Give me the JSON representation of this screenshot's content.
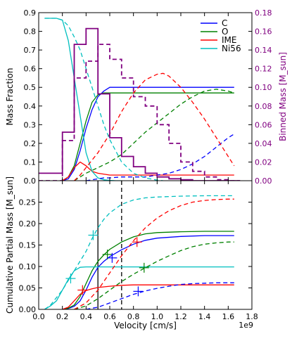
{
  "chart_data": [
    {
      "type": "line",
      "panel": "top",
      "xlim": [
        0,
        1.8
      ],
      "ylim": [
        0,
        0.9
      ],
      "ylabel": "Mass Fraction",
      "yticks": [
        "0.0",
        "0.1",
        "0.2",
        "0.3",
        "0.4",
        "0.5",
        "0.6",
        "0.7",
        "0.8",
        "0.9"
      ],
      "right_axis": {
        "label": "Binned Mass [M_sun]",
        "ylim": [
          0,
          0.18
        ],
        "yticks": [
          "0.00",
          "0.02",
          "0.04",
          "0.06",
          "0.08",
          "0.10",
          "0.12",
          "0.14",
          "0.16",
          "0.18"
        ],
        "color": "#800080"
      },
      "legend": {
        "position": "top-right",
        "entries": [
          {
            "name": "C",
            "color": "#0000ff"
          },
          {
            "name": "O",
            "color": "#008000"
          },
          {
            "name": "IME",
            "color": "#ff0000"
          },
          {
            "name": "Ni56",
            "color": "#00bfbf"
          }
        ]
      },
      "series": [
        {
          "name": "C",
          "color": "#0000ff",
          "style": "solid",
          "x": [
            0.2,
            0.25,
            0.3,
            0.35,
            0.4,
            0.45,
            0.5,
            0.55,
            0.6,
            0.65,
            0.7,
            0.8,
            1.0,
            1.2,
            1.4,
            1.6,
            1.65
          ],
          "y": [
            0,
            0.01,
            0.06,
            0.16,
            0.28,
            0.38,
            0.45,
            0.48,
            0.5,
            0.5,
            0.5,
            0.5,
            0.5,
            0.5,
            0.5,
            0.5,
            0.5
          ]
        },
        {
          "name": "O",
          "color": "#008000",
          "style": "solid",
          "x": [
            0.2,
            0.25,
            0.3,
            0.35,
            0.4,
            0.45,
            0.5,
            0.55,
            0.6,
            0.7,
            0.8,
            1.0,
            1.2,
            1.4,
            1.6,
            1.65
          ],
          "y": [
            0,
            0.02,
            0.08,
            0.2,
            0.32,
            0.42,
            0.46,
            0.47,
            0.47,
            0.47,
            0.47,
            0.47,
            0.47,
            0.47,
            0.47,
            0.47
          ]
        },
        {
          "name": "IME",
          "color": "#ff0000",
          "style": "solid",
          "x": [
            0.2,
            0.25,
            0.3,
            0.35,
            0.4,
            0.45,
            0.5,
            0.6,
            0.7,
            0.8,
            1.0,
            1.2,
            1.4,
            1.6,
            1.65
          ],
          "y": [
            0,
            0.02,
            0.07,
            0.1,
            0.08,
            0.05,
            0.04,
            0.03,
            0.03,
            0.03,
            0.03,
            0.03,
            0.03,
            0.03,
            0.03
          ]
        },
        {
          "name": "Ni56",
          "color": "#00bfbf",
          "style": "solid",
          "x": [
            0.05,
            0.1,
            0.15,
            0.2,
            0.25,
            0.3,
            0.35,
            0.4,
            0.45,
            0.5,
            0.55,
            0.6,
            0.65,
            0.7
          ],
          "y": [
            0.87,
            0.87,
            0.87,
            0.86,
            0.75,
            0.55,
            0.35,
            0.15,
            0.05,
            0.015,
            0.005,
            0.002,
            0.0,
            0.0
          ]
        },
        {
          "name": "C (dashed)",
          "color": "#0000ff",
          "style": "dashed",
          "x": [
            0.4,
            0.45,
            0.5,
            0.55,
            0.6,
            0.7,
            0.8,
            0.9,
            1.0,
            1.1,
            1.2,
            1.3,
            1.4,
            1.5,
            1.6,
            1.65
          ],
          "y": [
            0,
            0.005,
            0.01,
            0.015,
            0.015,
            0.02,
            0.02,
            0.02,
            0.03,
            0.04,
            0.06,
            0.09,
            0.13,
            0.18,
            0.23,
            0.25
          ]
        },
        {
          "name": "O (dashed)",
          "color": "#008000",
          "style": "dashed",
          "x": [
            0.3,
            0.35,
            0.4,
            0.5,
            0.6,
            0.7,
            0.8,
            0.9,
            1.0,
            1.1,
            1.2,
            1.3,
            1.4,
            1.5,
            1.6,
            1.65
          ],
          "y": [
            0,
            0.02,
            0.04,
            0.07,
            0.1,
            0.14,
            0.2,
            0.26,
            0.31,
            0.36,
            0.41,
            0.45,
            0.48,
            0.49,
            0.48,
            0.47
          ]
        },
        {
          "name": "IME (dashed)",
          "color": "#ff0000",
          "style": "dashed",
          "x": [
            0.3,
            0.35,
            0.4,
            0.5,
            0.6,
            0.7,
            0.8,
            0.9,
            1.0,
            1.05,
            1.1,
            1.2,
            1.3,
            1.4,
            1.5,
            1.6,
            1.65
          ],
          "y": [
            0,
            0.03,
            0.07,
            0.15,
            0.25,
            0.37,
            0.47,
            0.54,
            0.57,
            0.575,
            0.56,
            0.5,
            0.42,
            0.33,
            0.23,
            0.13,
            0.08
          ]
        },
        {
          "name": "Ni56 (dashed)",
          "color": "#00bfbf",
          "style": "dashed",
          "x": [
            0.05,
            0.1,
            0.15,
            0.2,
            0.25,
            0.3,
            0.35,
            0.4,
            0.45,
            0.5,
            0.55,
            0.6,
            0.7,
            0.8,
            0.9,
            1.0,
            1.05
          ],
          "y": [
            0.87,
            0.87,
            0.87,
            0.86,
            0.83,
            0.77,
            0.7,
            0.6,
            0.5,
            0.4,
            0.3,
            0.22,
            0.1,
            0.04,
            0.015,
            0.003,
            0.0
          ]
        },
        {
          "name": "Binned mass (solid)",
          "color": "#800080",
          "style": "step-solid",
          "axis": "right",
          "edges": [
            0.0,
            0.1,
            0.2,
            0.3,
            0.4,
            0.5,
            0.6,
            0.7,
            0.8,
            0.9,
            1.0,
            1.1,
            1.2,
            1.3,
            1.4,
            1.5,
            1.6,
            1.7
          ],
          "values": [
            0.008,
            0.008,
            0.052,
            0.146,
            0.163,
            0.093,
            0.046,
            0.026,
            0.015,
            0.008,
            0.004,
            0.002,
            0.001,
            0.0,
            0.0,
            0.0,
            0.0
          ]
        },
        {
          "name": "Binned mass (dashed)",
          "color": "#800080",
          "style": "step-dashed",
          "axis": "right",
          "edges": [
            0.0,
            0.1,
            0.2,
            0.3,
            0.4,
            0.5,
            0.6,
            0.7,
            0.8,
            0.9,
            1.0,
            1.1,
            1.2,
            1.3,
            1.4,
            1.5,
            1.6,
            1.7
          ],
          "values": [
            0.0,
            0.0,
            0.043,
            0.11,
            0.128,
            0.146,
            0.13,
            0.11,
            0.09,
            0.08,
            0.06,
            0.04,
            0.02,
            0.01,
            0.004,
            0.001,
            0.0
          ]
        }
      ]
    },
    {
      "type": "line",
      "panel": "bottom",
      "xlabel": "Velocity [cm/s]",
      "xlim": [
        0,
        1.8
      ],
      "ylim": [
        0,
        0.3
      ],
      "ylabel": "Cumulative Partial Mass [M_sun]",
      "x_offset_label": "1e9",
      "xticks": [
        "0.0",
        "0.2",
        "0.4",
        "0.6",
        "0.8",
        "1.0",
        "1.2",
        "1.4",
        "1.6",
        "1.8"
      ],
      "yticks": [
        "0.00",
        "0.05",
        "0.10",
        "0.15",
        "0.20",
        "0.25"
      ],
      "vlines": [
        {
          "x": 0.5,
          "style": "solid",
          "color": "#000000"
        },
        {
          "x": 0.7,
          "style": "dashed",
          "color": "#000000"
        }
      ],
      "series": [
        {
          "name": "C",
          "color": "#0000ff",
          "style": "solid",
          "x": [
            0.2,
            0.25,
            0.3,
            0.35,
            0.4,
            0.45,
            0.5,
            0.55,
            0.6,
            0.7,
            0.8,
            0.9,
            1.0,
            1.2,
            1.4,
            1.6,
            1.65
          ],
          "y": [
            0,
            0.002,
            0.007,
            0.02,
            0.045,
            0.075,
            0.098,
            0.112,
            0.123,
            0.139,
            0.152,
            0.161,
            0.166,
            0.17,
            0.172,
            0.172,
            0.172
          ]
        },
        {
          "name": "O",
          "color": "#008000",
          "style": "solid",
          "x": [
            0.2,
            0.25,
            0.3,
            0.35,
            0.4,
            0.45,
            0.5,
            0.55,
            0.6,
            0.7,
            0.8,
            0.9,
            1.0,
            1.2,
            1.4,
            1.6,
            1.65
          ],
          "y": [
            0,
            0.003,
            0.01,
            0.03,
            0.06,
            0.09,
            0.112,
            0.127,
            0.14,
            0.157,
            0.169,
            0.176,
            0.179,
            0.181,
            0.182,
            0.182,
            0.182
          ]
        },
        {
          "name": "IME",
          "color": "#ff0000",
          "style": "solid",
          "x": [
            0.2,
            0.25,
            0.3,
            0.35,
            0.4,
            0.45,
            0.5,
            0.6,
            0.7,
            0.8,
            0.9,
            1.0,
            1.2,
            1.4,
            1.6,
            1.65
          ],
          "y": [
            0,
            0.005,
            0.02,
            0.035,
            0.044,
            0.048,
            0.051,
            0.054,
            0.056,
            0.057,
            0.057,
            0.057,
            0.057,
            0.057,
            0.057,
            0.057
          ]
        },
        {
          "name": "Ni56",
          "color": "#00bfbf",
          "style": "solid",
          "x": [
            0.05,
            0.1,
            0.15,
            0.2,
            0.25,
            0.3,
            0.35,
            0.4,
            0.5,
            0.6,
            0.8,
            1.0,
            1.2,
            1.4,
            1.6,
            1.65
          ],
          "y": [
            0,
            0.008,
            0.02,
            0.045,
            0.07,
            0.09,
            0.098,
            0.099,
            0.099,
            0.099,
            0.099,
            0.099,
            0.099,
            0.099,
            0.099,
            0.099
          ]
        },
        {
          "name": "C (dashed)",
          "color": "#0000ff",
          "style": "dashed",
          "x": [
            0.4,
            0.5,
            0.6,
            0.7,
            0.8,
            0.9,
            1.0,
            1.1,
            1.2,
            1.3,
            1.4,
            1.5,
            1.6,
            1.65
          ],
          "y": [
            0,
            0.005,
            0.015,
            0.025,
            0.035,
            0.043,
            0.049,
            0.054,
            0.058,
            0.06,
            0.061,
            0.062,
            0.062,
            0.062
          ]
        },
        {
          "name": "O (dashed)",
          "color": "#008000",
          "style": "dashed",
          "x": [
            0.3,
            0.4,
            0.5,
            0.6,
            0.7,
            0.8,
            0.9,
            1.0,
            1.1,
            1.2,
            1.3,
            1.4,
            1.5,
            1.6,
            1.65
          ],
          "y": [
            0,
            0.008,
            0.025,
            0.045,
            0.065,
            0.082,
            0.097,
            0.112,
            0.125,
            0.137,
            0.146,
            0.152,
            0.155,
            0.157,
            0.157
          ]
        },
        {
          "name": "IME (dashed)",
          "color": "#ff0000",
          "style": "dashed",
          "x": [
            0.3,
            0.4,
            0.5,
            0.6,
            0.7,
            0.8,
            0.9,
            1.0,
            1.1,
            1.2,
            1.3,
            1.4,
            1.5,
            1.6,
            1.65
          ],
          "y": [
            0,
            0.015,
            0.045,
            0.085,
            0.125,
            0.16,
            0.19,
            0.213,
            0.23,
            0.242,
            0.25,
            0.254,
            0.256,
            0.257,
            0.257
          ]
        },
        {
          "name": "Ni56 (dashed)",
          "color": "#00bfbf",
          "style": "dashed",
          "x": [
            0.05,
            0.1,
            0.2,
            0.3,
            0.4,
            0.45,
            0.5,
            0.55,
            0.6,
            0.7,
            0.8,
            0.9,
            1.0,
            1.2,
            1.4,
            1.6,
            1.65
          ],
          "y": [
            0,
            0.01,
            0.045,
            0.09,
            0.135,
            0.165,
            0.19,
            0.21,
            0.225,
            0.245,
            0.255,
            0.26,
            0.262,
            0.264,
            0.265,
            0.265,
            0.265
          ]
        }
      ],
      "markers": [
        {
          "x": 0.46,
          "y": 0.173,
          "color": "#00bfbf"
        },
        {
          "x": 0.27,
          "y": 0.072,
          "color": "#00bfbf"
        },
        {
          "x": 0.58,
          "y": 0.128,
          "color": "#008000"
        },
        {
          "x": 0.62,
          "y": 0.12,
          "color": "#0000ff"
        },
        {
          "x": 0.37,
          "y": 0.045,
          "color": "#ff0000"
        },
        {
          "x": 0.83,
          "y": 0.157,
          "color": "#ff0000"
        },
        {
          "x": 0.89,
          "y": 0.097,
          "color": "#008000"
        },
        {
          "x": 0.84,
          "y": 0.042,
          "color": "#0000ff"
        }
      ]
    }
  ]
}
